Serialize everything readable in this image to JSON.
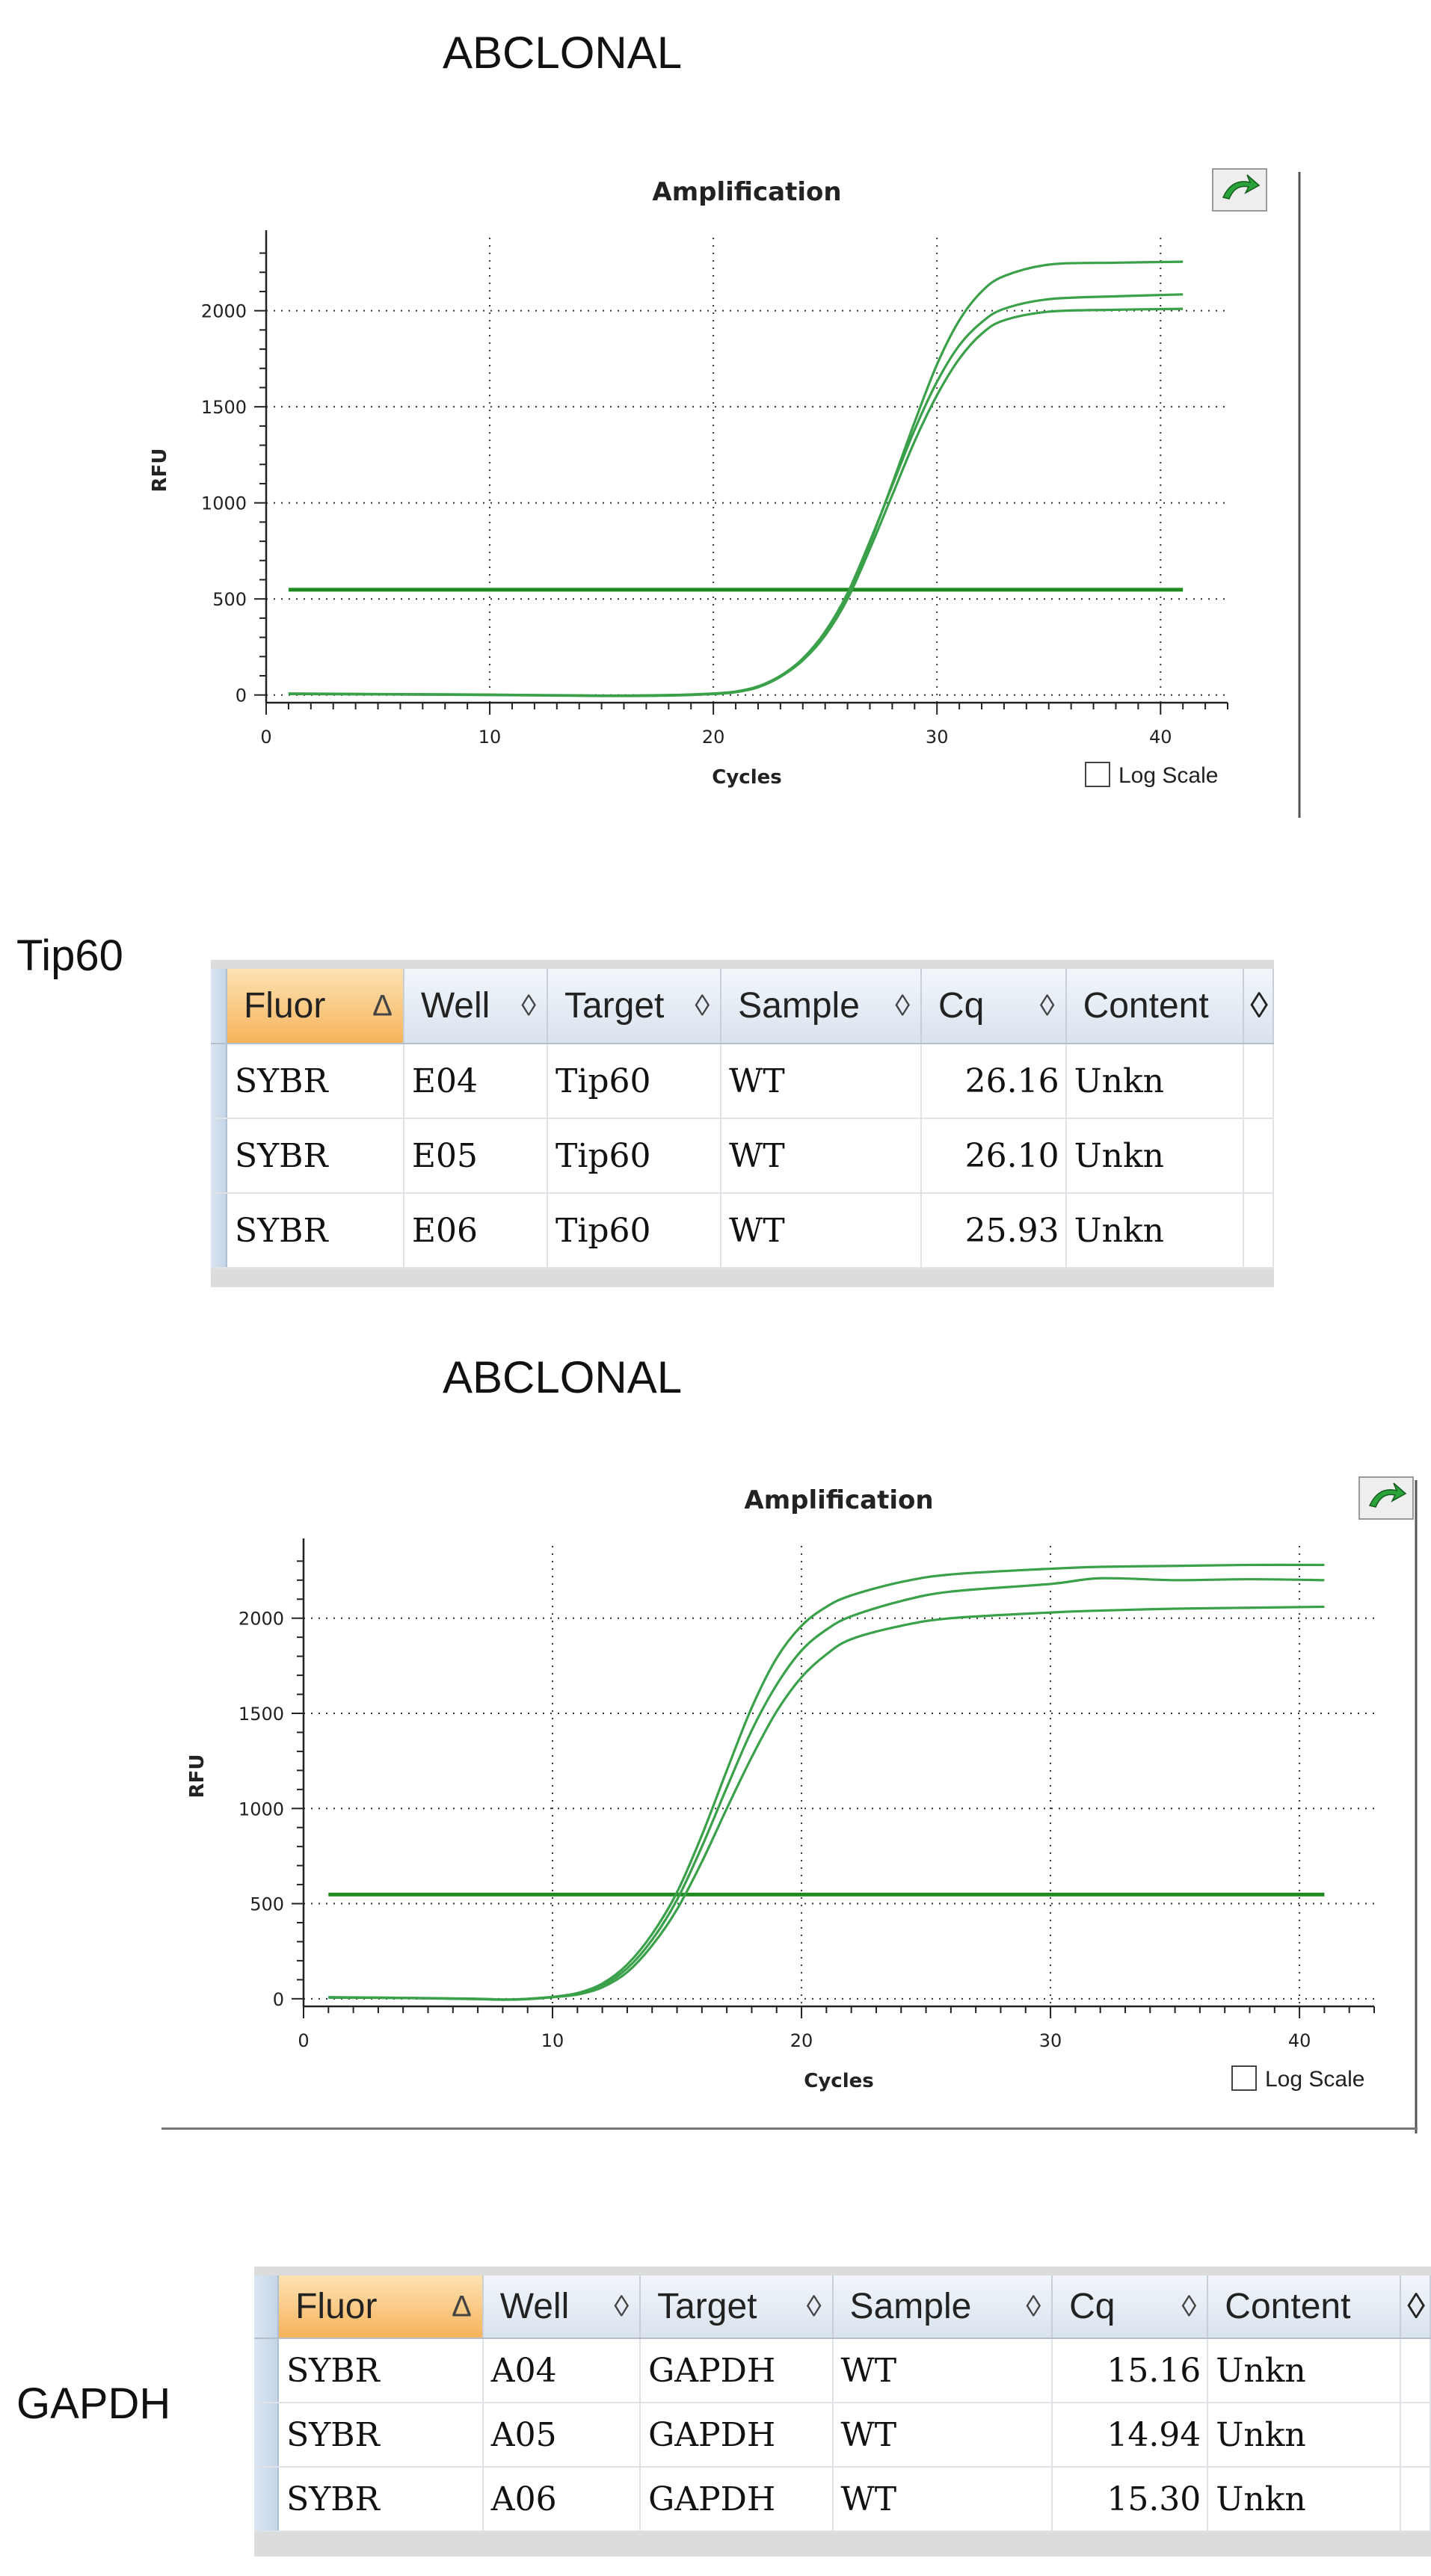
{
  "sections": [
    {
      "title": "ABCLONAL",
      "label": "Tip60"
    },
    {
      "title": "ABCLONAL",
      "label": "GAPDH"
    }
  ],
  "chart_data": [
    {
      "type": "line",
      "title": "Amplification",
      "xlabel": "Cycles",
      "ylabel": "RFU",
      "xlim": [
        0,
        43
      ],
      "ylim": [
        -40,
        2380
      ],
      "xticks": [
        0,
        10,
        20,
        30,
        40
      ],
      "yticks": [
        0,
        500,
        1000,
        1500,
        2000
      ],
      "grid": true,
      "log_scale_label": "Log Scale",
      "log_scale_checked": false,
      "threshold": 548,
      "color": "#3aa14a",
      "threshold_color": "#1f8a1f",
      "series": [
        {
          "x": [
            1,
            5,
            10,
            15,
            18,
            20,
            21,
            22,
            23,
            24,
            25,
            26,
            27,
            28,
            29,
            30,
            31,
            32,
            33,
            35,
            38,
            41
          ],
          "y": [
            5,
            3,
            0,
            -5,
            -3,
            5,
            15,
            40,
            95,
            185,
            320,
            520,
            790,
            1100,
            1420,
            1720,
            1950,
            2100,
            2180,
            2240,
            2250,
            2255
          ]
        },
        {
          "x": [
            1,
            5,
            10,
            15,
            18,
            20,
            21,
            22,
            23,
            24,
            25,
            26,
            27,
            28,
            29,
            30,
            31,
            32,
            33,
            35,
            38,
            41
          ],
          "y": [
            8,
            5,
            2,
            -3,
            0,
            8,
            18,
            45,
            100,
            190,
            330,
            530,
            800,
            1090,
            1380,
            1630,
            1820,
            1940,
            2010,
            2060,
            2075,
            2085
          ]
        },
        {
          "x": [
            1,
            5,
            10,
            15,
            18,
            20,
            21,
            22,
            23,
            24,
            25,
            26,
            27,
            28,
            29,
            30,
            31,
            32,
            33,
            35,
            38,
            41
          ],
          "y": [
            6,
            4,
            1,
            -4,
            -2,
            6,
            16,
            42,
            95,
            180,
            310,
            500,
            760,
            1040,
            1320,
            1560,
            1750,
            1880,
            1950,
            1995,
            2005,
            2010
          ]
        }
      ]
    },
    {
      "type": "line",
      "title": "Amplification",
      "xlabel": "Cycles",
      "ylabel": "RFU",
      "xlim": [
        0,
        43
      ],
      "ylim": [
        -40,
        2380
      ],
      "xticks": [
        0,
        10,
        20,
        30,
        40
      ],
      "yticks": [
        0,
        500,
        1000,
        1500,
        2000
      ],
      "grid": true,
      "log_scale_label": "Log Scale",
      "log_scale_checked": false,
      "threshold": 548,
      "color": "#3aa14a",
      "threshold_color": "#1f8a1f",
      "series": [
        {
          "x": [
            1,
            4,
            7,
            8,
            9,
            10,
            11,
            12,
            13,
            14,
            15,
            16,
            17,
            18,
            19,
            20,
            21,
            22,
            24,
            26,
            30,
            32,
            35,
            38,
            41
          ],
          "y": [
            8,
            5,
            0,
            -4,
            0,
            10,
            30,
            80,
            180,
            340,
            560,
            860,
            1200,
            1530,
            1790,
            1960,
            2060,
            2120,
            2190,
            2230,
            2260,
            2270,
            2275,
            2280,
            2280
          ]
        },
        {
          "x": [
            1,
            4,
            7,
            8,
            9,
            10,
            11,
            12,
            13,
            14,
            15,
            16,
            17,
            18,
            19,
            20,
            21,
            22,
            24,
            26,
            30,
            32,
            35,
            38,
            41
          ],
          "y": [
            6,
            4,
            -2,
            -5,
            -2,
            8,
            25,
            70,
            160,
            310,
            520,
            800,
            1110,
            1410,
            1650,
            1830,
            1940,
            2010,
            2090,
            2140,
            2180,
            2210,
            2200,
            2205,
            2200
          ]
        },
        {
          "x": [
            1,
            4,
            7,
            8,
            9,
            10,
            11,
            12,
            13,
            14,
            15,
            16,
            17,
            18,
            19,
            20,
            21,
            22,
            24,
            26,
            30,
            32,
            35,
            38,
            41
          ],
          "y": [
            7,
            4,
            -1,
            -4,
            -1,
            9,
            22,
            60,
            140,
            280,
            470,
            720,
            1000,
            1270,
            1510,
            1690,
            1810,
            1890,
            1960,
            2000,
            2030,
            2040,
            2050,
            2055,
            2060
          ]
        }
      ]
    }
  ],
  "tables": [
    {
      "columns": [
        "Fluor",
        "Well",
        "Target",
        "Sample",
        "Cq",
        "Content"
      ],
      "sort_marker": "Δ",
      "unsorted_marker": "◊",
      "rows": [
        [
          "SYBR",
          "E04",
          "Tip60",
          "WT",
          "26.16",
          "Unkn"
        ],
        [
          "SYBR",
          "E05",
          "Tip60",
          "WT",
          "26.10",
          "Unkn"
        ],
        [
          "SYBR",
          "E06",
          "Tip60",
          "WT",
          "25.93",
          "Unkn"
        ]
      ]
    },
    {
      "columns": [
        "Fluor",
        "Well",
        "Target",
        "Sample",
        "Cq",
        "Content"
      ],
      "sort_marker": "Δ",
      "unsorted_marker": "◊",
      "rows": [
        [
          "SYBR",
          "A04",
          "GAPDH",
          "WT",
          "15.16",
          "Unkn"
        ],
        [
          "SYBR",
          "A05",
          "GAPDH",
          "WT",
          "14.94",
          "Unkn"
        ],
        [
          "SYBR",
          "A06",
          "GAPDH",
          "WT",
          "15.30",
          "Unkn"
        ]
      ]
    }
  ]
}
